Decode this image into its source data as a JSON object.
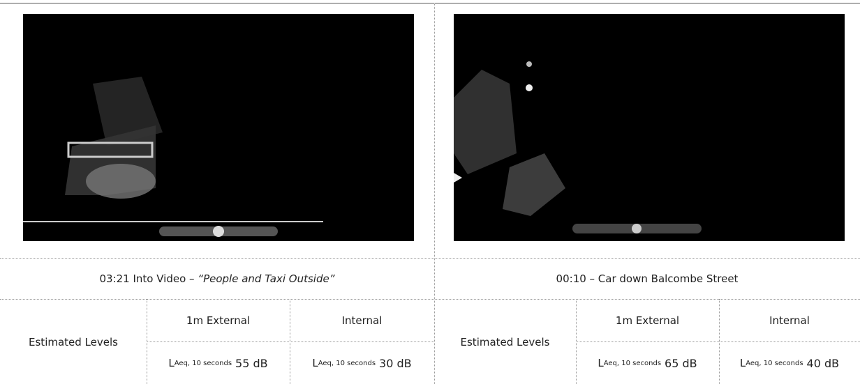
{
  "panels": [
    {
      "caption": {
        "prefix": "03:21 Into Video – ",
        "italic": "“People and Taxi Outside”"
      },
      "table": {
        "row_label": "Estimated Levels",
        "columns": [
          {
            "header": "1m External",
            "symbol": "L",
            "subscript": "Aeq, 10 seconds",
            "level": "55 dB"
          },
          {
            "header": "Internal",
            "symbol": "L",
            "subscript": "Aeq, 10 seconds",
            "level": "30 dB"
          }
        ]
      }
    },
    {
      "caption": {
        "prefix": "00:10 – Car down Balcombe Street"
      },
      "table": {
        "row_label": "Estimated Levels",
        "columns": [
          {
            "header": "1m External",
            "symbol": "L",
            "subscript": "Aeq, 10 seconds",
            "level": "65 dB"
          },
          {
            "header": "Internal",
            "symbol": "L",
            "subscript": "Aeq, 10 seconds",
            "level": "40 dB"
          }
        ]
      }
    }
  ]
}
